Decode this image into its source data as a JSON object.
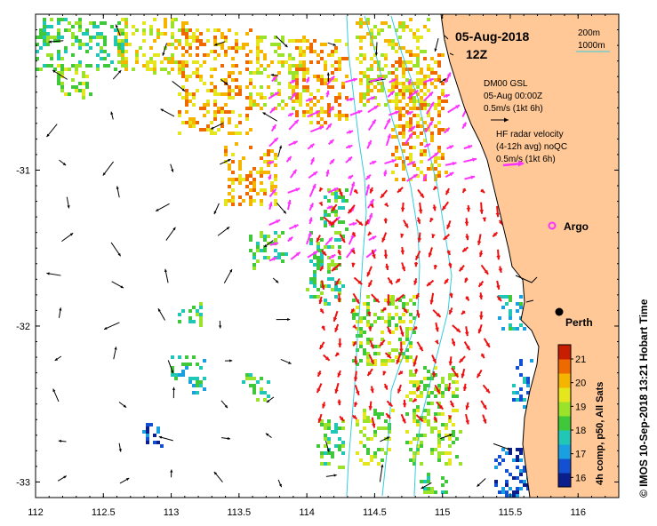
{
  "map": {
    "date": "05-Aug-2018",
    "time": "12Z",
    "x_ticks": [
      "112",
      "112.5",
      "113",
      "113.5",
      "114",
      "114.5",
      "115",
      "115.5",
      "116"
    ],
    "y_ticks": [
      "-31",
      "-32",
      "-33"
    ],
    "lon_range": [
      112,
      116.3
    ],
    "lat_range": [
      -33.1,
      -30.0
    ]
  },
  "legend": {
    "contour_200": "200m",
    "contour_1000": "1000m",
    "model_line1": "DM00 GSL",
    "model_line2": "05-Aug 00:00Z",
    "model_line3": "0.5m/s (1kt 6h)",
    "radar_line1": "HF radar velocity",
    "radar_line2": "(4-12h avg) noQC",
    "radar_line3": "0.5m/s (1kt 6h)"
  },
  "places": {
    "argo": "Argo",
    "perth": "Perth"
  },
  "colorbar": {
    "ticks": [
      "16",
      "17",
      "18",
      "19",
      "20",
      "21"
    ],
    "min": 15.6,
    "max": 21.6,
    "label": "4h comp, p50, All Sats",
    "colors": [
      "#0b1f8c",
      "#1450d2",
      "#1aa0e0",
      "#20c7b6",
      "#3fc83a",
      "#9be22a",
      "#e6e61e",
      "#f5b400",
      "#ee6a00",
      "#c81e00"
    ]
  },
  "credit": "© IMOS 10-Sep-2018 13:21 Hobart Time",
  "colors": {
    "land": "#ffc896",
    "model_arrow": "#000000",
    "radar_arrow_offshore": "#ff33ff",
    "radar_arrow_shelf": "#ee1111",
    "contour": "#33ccdd"
  }
}
